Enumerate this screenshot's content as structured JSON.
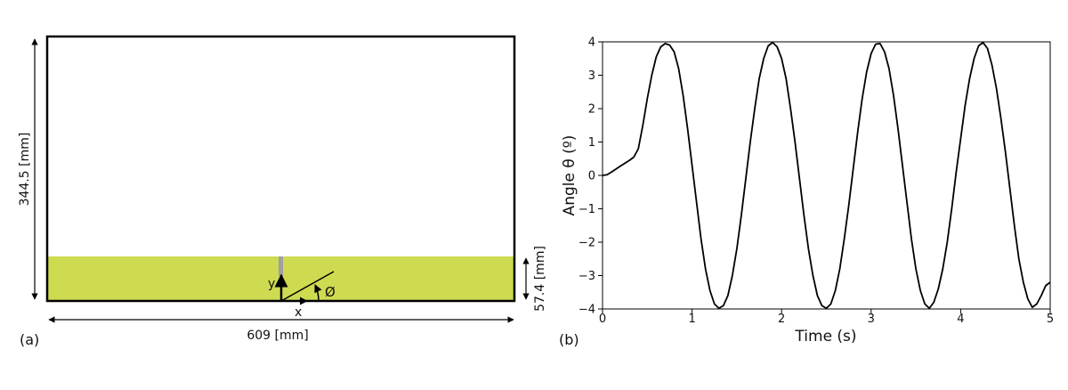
{
  "panel_a": {
    "label": "(a)",
    "height_label": "344.5 [mm]",
    "width_label": "609 [mm]",
    "water_label": "57.4 [mm]",
    "y_axis_label": "y",
    "x_axis_label": "x",
    "angle_label": "Ø",
    "colors": {
      "water": "#cedb50",
      "tank": "#000000",
      "baffle": "#a0a0a0"
    }
  },
  "panel_b": {
    "label": "(b)",
    "chart_data": {
      "type": "line",
      "xlabel": "Time (s)",
      "ylabel": "Angle θ (º)",
      "xlim": [
        0,
        5
      ],
      "ylim": [
        -4,
        4
      ],
      "xticks": [
        "0",
        "1",
        "2",
        "3",
        "4",
        "5"
      ],
      "yticks": [
        "4",
        "3",
        "2",
        "1",
        "0",
        "−1",
        "−2",
        "−3",
        "−4"
      ],
      "grid": false,
      "series": [
        {
          "color": "#000000",
          "x": [
            0,
            0.05,
            0.1,
            0.2,
            0.3,
            0.35,
            0.4,
            0.45,
            0.5,
            0.55,
            0.6,
            0.65,
            0.7,
            0.75,
            0.8,
            0.85,
            0.9,
            0.95,
            1.0,
            1.05,
            1.1,
            1.15,
            1.2,
            1.25,
            1.3,
            1.35,
            1.4,
            1.45,
            1.5,
            1.55,
            1.6,
            1.65,
            1.7,
            1.75,
            1.8,
            1.85,
            1.9,
            1.95,
            2.0,
            2.05,
            2.1,
            2.15,
            2.2,
            2.25,
            2.3,
            2.35,
            2.4,
            2.45,
            2.5,
            2.55,
            2.6,
            2.65,
            2.7,
            2.75,
            2.8,
            2.85,
            2.9,
            2.95,
            3.0,
            3.05,
            3.1,
            3.15,
            3.2,
            3.25,
            3.3,
            3.35,
            3.4,
            3.45,
            3.5,
            3.55,
            3.6,
            3.65,
            3.7,
            3.75,
            3.8,
            3.85,
            3.9,
            3.95,
            4.0,
            4.05,
            4.1,
            4.15,
            4.2,
            4.25,
            4.3,
            4.35,
            4.4,
            4.45,
            4.5,
            4.55,
            4.6,
            4.65,
            4.7,
            4.75,
            4.8,
            4.85,
            4.9,
            4.95,
            5.0
          ],
          "y": [
            0.0,
            0.02,
            0.1,
            0.28,
            0.45,
            0.55,
            0.8,
            1.5,
            2.3,
            3.0,
            3.55,
            3.85,
            3.95,
            3.9,
            3.7,
            3.2,
            2.4,
            1.4,
            0.3,
            -0.8,
            -1.9,
            -2.8,
            -3.45,
            -3.85,
            -3.98,
            -3.9,
            -3.6,
            -3.0,
            -2.2,
            -1.2,
            -0.1,
            1.0,
            2.0,
            2.9,
            3.5,
            3.88,
            3.98,
            3.85,
            3.5,
            2.9,
            2.0,
            1.0,
            -0.1,
            -1.2,
            -2.2,
            -3.0,
            -3.6,
            -3.9,
            -3.98,
            -3.85,
            -3.45,
            -2.8,
            -1.9,
            -0.9,
            0.2,
            1.3,
            2.3,
            3.1,
            3.65,
            3.93,
            3.95,
            3.7,
            3.2,
            2.4,
            1.4,
            0.3,
            -0.8,
            -1.9,
            -2.8,
            -3.45,
            -3.85,
            -3.98,
            -3.8,
            -3.4,
            -2.8,
            -2.0,
            -1.0,
            0.1,
            1.1,
            2.1,
            2.9,
            3.5,
            3.88,
            3.98,
            3.8,
            3.3,
            2.6,
            1.7,
            0.7,
            -0.4,
            -1.5,
            -2.5,
            -3.2,
            -3.7,
            -3.95,
            -3.85,
            -3.6,
            -3.3,
            -3.2
          ]
        }
      ]
    }
  }
}
